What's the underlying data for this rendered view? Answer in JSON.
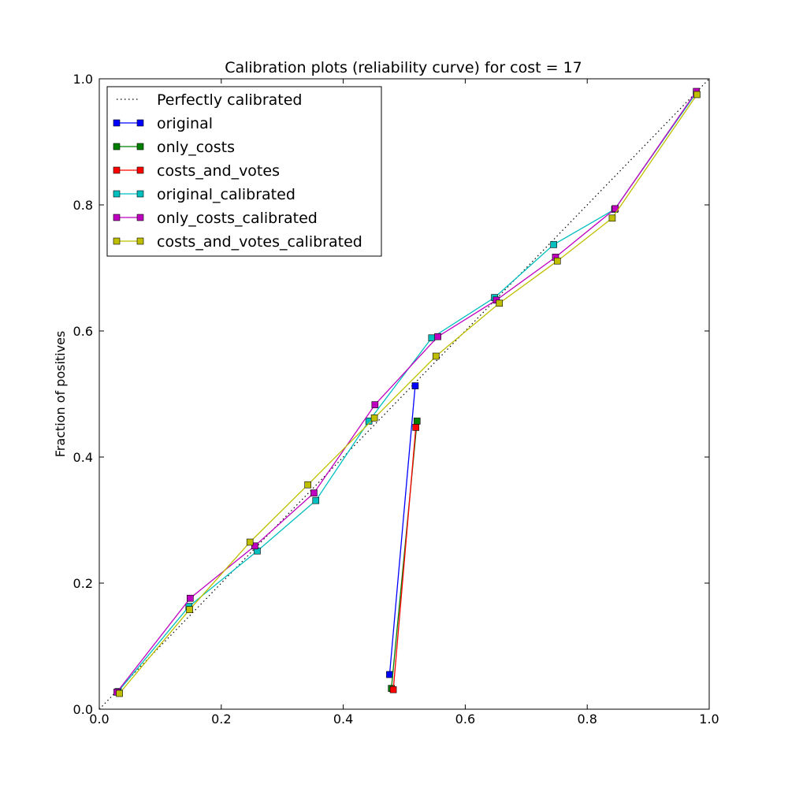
{
  "chart_data": {
    "type": "line",
    "title": "Calibration plots  (reliability curve) for cost = 17",
    "xlabel": "",
    "ylabel": "Fraction of positives",
    "xlim": [
      0.0,
      1.0
    ],
    "ylim": [
      0.0,
      1.0
    ],
    "xticks": [
      "0.0",
      "0.2",
      "0.4",
      "0.6",
      "0.8",
      "1.0"
    ],
    "yticks": [
      "0.0",
      "0.2",
      "0.4",
      "0.6",
      "0.8",
      "1.0"
    ],
    "grid": false,
    "legend_position": "upper-left",
    "reference": {
      "name": "Perfectly calibrated",
      "x": [
        0.0,
        1.0
      ],
      "y": [
        0.0,
        1.0
      ],
      "style": "dotted",
      "color": "#000000"
    },
    "series": [
      {
        "name": "original",
        "color": "#0000ff",
        "x": [
          0.476,
          0.518
        ],
        "y": [
          0.055,
          0.513
        ]
      },
      {
        "name": "only_costs",
        "color": "#008000",
        "x": [
          0.479,
          0.521
        ],
        "y": [
          0.033,
          0.457
        ]
      },
      {
        "name": "costs_and_votes",
        "color": "#ff0000",
        "x": [
          0.482,
          0.519
        ],
        "y": [
          0.031,
          0.447
        ]
      },
      {
        "name": "original_calibrated",
        "color": "#00bfbf",
        "x": [
          0.031,
          0.147,
          0.259,
          0.355,
          0.442,
          0.545,
          0.648,
          0.745,
          0.845,
          0.979
        ],
        "y": [
          0.028,
          0.163,
          0.251,
          0.331,
          0.457,
          0.589,
          0.653,
          0.737,
          0.793,
          0.978
        ]
      },
      {
        "name": "only_costs_calibrated",
        "color": "#bf00bf",
        "x": [
          0.029,
          0.149,
          0.255,
          0.352,
          0.452,
          0.555,
          0.651,
          0.748,
          0.846,
          0.979
        ],
        "y": [
          0.027,
          0.176,
          0.259,
          0.343,
          0.483,
          0.591,
          0.649,
          0.717,
          0.794,
          0.98
        ]
      },
      {
        "name": "costs_and_votes_calibrated",
        "color": "#bfbf00",
        "x": [
          0.033,
          0.148,
          0.247,
          0.342,
          0.451,
          0.552,
          0.656,
          0.751,
          0.841,
          0.98
        ],
        "y": [
          0.025,
          0.158,
          0.265,
          0.356,
          0.462,
          0.56,
          0.644,
          0.711,
          0.779,
          0.975
        ]
      }
    ]
  }
}
